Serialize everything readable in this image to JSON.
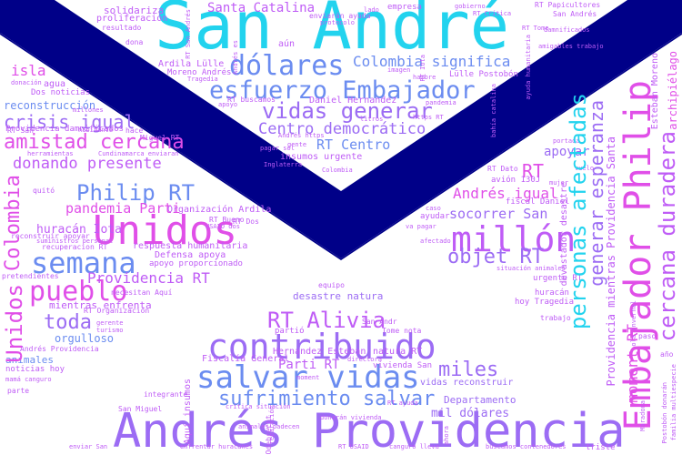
{
  "palette": {
    "cyan": "#22d3ee",
    "blue": "#6b8cf0",
    "violet": "#9c6cf4",
    "purple": "#bf5cf6",
    "magenta": "#e04fe8",
    "navy": "#000088"
  },
  "words": {
    "san_andre": "San André",
    "andres_providencia": "Andrés Providencia",
    "unidos": "Unidos",
    "contribuido": "contribuido",
    "salvar_vidas": "salvar vidas",
    "millon": "millón",
    "dolares": "dólares",
    "esfuerzo_embajador": "esfuerzo Embajador",
    "embajador_philip": "Embajador Philip",
    "vidas_generar": "vidas generar",
    "semana": "semana",
    "sufrimiento_salvar": "sufrimiento salvar",
    "amistad_cercana": "amistad cercana",
    "pueblo": "pueblo",
    "philip_rt": "Philip RT",
    "personas_afectadas": "personas afectadas",
    "rt_alivia": "RT Alivia",
    "generar_esperanza": "generar esperanza",
    "cercana_duradera": "cercana duradera",
    "colombia_significa": "Colombia significa",
    "centro_democratico": "Centro democrático",
    "miles": "miles",
    "objet_rt": "objet RT",
    "toda": "toda",
    "crisis_igual": "crisis igual",
    "donando_presente": "donando presente",
    "pandemia_parti": "pandemia Parti",
    "providencia_rt": "Providencia RT",
    "rt_centro": "RT Centro",
    "andres_igual": "Andrés igual",
    "socorrer_san": "socorrer San",
    "apoyar": "apoyar",
    "rt": "RT",
    "santa_catalina": "Santa Catalina",
    "isla": "isla",
    "reconstruccion": "reconstrucción",
    "colombia": "Colombia",
    "unidos_vert": "Unidos",
    "huracan_iota": "huracán Iota",
    "mientras_enfrenta": "mientras enfrenta",
    "orgulloso": "orgulloso",
    "animales": "animales",
    "moment_rt": "moment RT",
    "providencia_mientras_santa": "Providencia mientras Providencia Santa",
    "esteban_moreno": "Esteban Moreno",
    "archipielago": "archipiélago",
    "fiscalia_general": "Fiscalía General",
    "parti_rt": "Parti RT",
    "desastre_natura": "desastre natura",
    "mil_dolares": "mil dólares",
    "departamento": "Departamento",
    "respuesta_humanitaria": "respuesta humanitaria",
    "organizacion_ardila": "Organización Ardila",
    "defensa_apoya": "Defensa apoya",
    "apoyo_proporcionado": "apoyo proporcionado",
    "hernandez_esteban": "Hernandez Esteban",
    "natura_rt": "natura RT",
    "solidariza": "solidariza",
    "proliferacion": "proliferación",
    "aun": "aún",
    "ardila_lulle": "Ardila Lülle",
    "moreno_andres": "Moreno Andrés",
    "daniel_hernandez": "Daniel Hernandez",
    "rt_buscamos": "RT buscamos",
    "insumos_urgente": "insumos urgente",
    "agua": "agua",
    "dos_noticias": "Dos noticias",
    "providencia_damnificados": "Providencia damnificados",
    "rt_san": "RT San",
    "miguel_rt": "Miguel RT",
    "quito": "quitó",
    "rt_bueno": "RT Bueno",
    "rt_dos": "RT Dos",
    "recuperacion_rt": "recuperacion RT",
    "reconstruir_apoyar": "reconstruir apoyar",
    "pretendientes": "pretendientes",
    "necesitan_aqui": "necesitan Aquí",
    "rt_organizacion": "RT Organización",
    "gerente": "gerente",
    "turismo": "turismo",
    "andres_providencia_small": "Andrés Providencia",
    "noticias_hoy": "noticias hoy",
    "parte": "parte",
    "integrante": "integrante",
    "san_miguel": "San Miguel",
    "enviar_san": "enviar San",
    "san_andres_small": "San Andrés",
    "rt_papicultores": "RT Papicultores",
    "gobierno": "gobierno",
    "empresa": "empresa",
    "lado": "lado",
    "dona": "dona",
    "resultado": "resultado",
    "rt_tome": "RT Tome",
    "lulle_postobon": "Lülle Postobón",
    "rt_dato": "RT Dato",
    "avion_130j": "avión 130J",
    "fiscal_daniel": "fiscal Daniel",
    "mujer": "mujer",
    "ayudar": "ayudar",
    "urgente_rt": "urgente RT",
    "hoy_tragedia": "hoy Tragedia",
    "huracan": "huracán",
    "trabajo": "trabajo",
    "devastador_desastre": "devastador desastre",
    "vivienda_san": "vivienda San",
    "vidas_reconstruir": "vidas reconstruir",
    "tome_nota": "Tome nota",
    "san_andr": "San Andr",
    "equipo": "equipo",
    "partio": "partió",
    "aqui_insumos": "Aquí insumos",
    "triste": "triste",
    "paso": "paso",
    "ano": "año",
    "colombia_small": "Colombia",
    "donacion": "donación",
    "hace": "hace",
    "cundinamarca": "Cundinamarca enviaran",
    "imagen": "imagen",
    "hambre": "hambre",
    "pandemia": "pandemia",
    "https_rt": "https RT",
    "litros": "litros",
    "gente": "gente",
    "apoyo": "apoyo",
    "tragedia": "Tragedia",
    "pagar_sol": "pagar sol",
    "enviaran_ayuda": "enviarán ayuda",
    "protocolo": "protocolo",
    "caso": "caso",
    "portada": "portada",
    "vuelo": "vuelo",
    "sumimos_personal": "suministros personal",
    "herramientas": "herramientas",
    "habitante": "habitante",
    "millones": "millones",
    "mama_canguro": "mamá canguro",
    "usaid_dos": "USAID dos",
    "andres_https": "Andrés https",
    "animales_padecen": "animales padecen",
    "directora": "directora",
    "rt_usaid": "RT USAID",
    "canguro_lleva": "canguro lleva",
    "buscamos_contenedores": "buscamos contenedores",
    "enfrentar_huracanes": "enfrentar huracanes",
    "donaran_vivienda": "donarán vivienda",
    "moment": "moment",
    "critica_situacion": "crítica situación",
    "situacion_animales": "situación animales",
    "postobon_donaran": "Postobón donarán",
    "familia_multiespecie": "familia multiespecie",
    "damnificados": "damnificados",
    "ola_invernal": "ola invernal",
    "va_pagar": "va pagar",
    "afectado": "afectado",
    "ayuda_humanitaria": "ayuda humanitaria",
    "amigables_trabajo": "amigables trabajo",
    "rt_critica": "RT Crítica",
    "rt_san_andres": "RT San Andrés",
    "inglaterra": "Inglaterra",
    "andres_es": "Andrés es",
    "rt_iota": "RT Iota",
    "bahia_catalina": "bahía catalina",
    "reparacion": "reparación",
    "odebrecht": "Odebrecht",
    "ahora": "ahora",
    "rt_ayuda": "RT ayuda",
    "maradona": "Maradona"
  }
}
